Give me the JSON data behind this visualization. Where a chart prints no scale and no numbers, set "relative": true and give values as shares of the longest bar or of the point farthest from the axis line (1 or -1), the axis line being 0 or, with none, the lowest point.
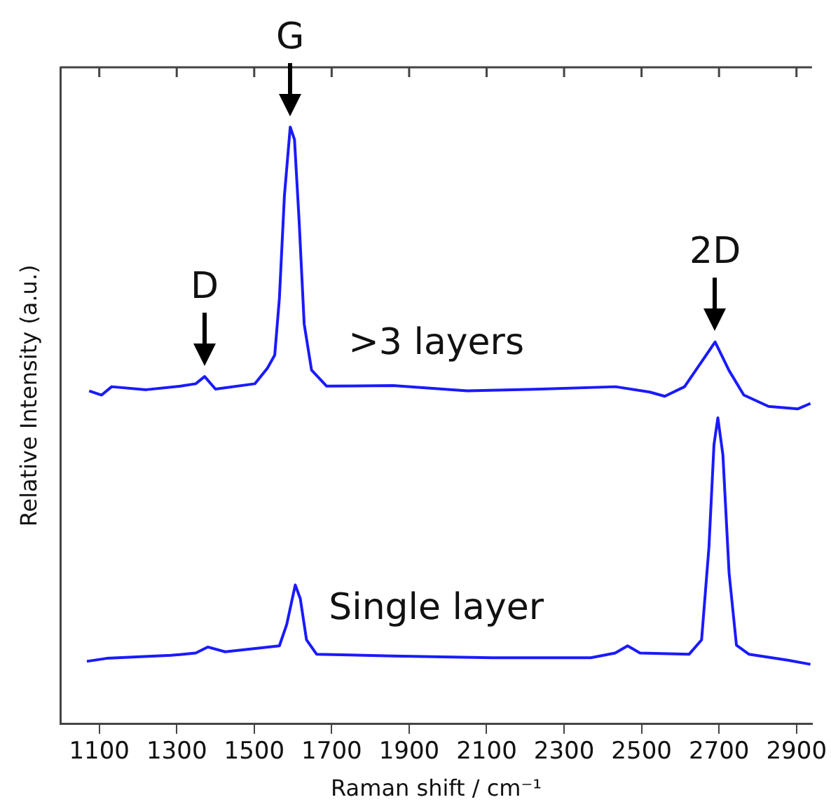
{
  "chart_data": {
    "type": "line",
    "relative": true,
    "xlabel": "Raman shift / cm⁻¹",
    "ylabel": "Relative Intensity (a.u.)",
    "xlim": [
      1000,
      2940
    ],
    "xticks": [
      1100,
      1300,
      1500,
      1700,
      1900,
      2100,
      2300,
      2500,
      2700,
      2900
    ],
    "grid": false,
    "legend": false,
    "marker": "none",
    "line_style": "solid",
    "annotations": [
      {
        "text": "D",
        "x": 1372,
        "y": 0.582
      },
      {
        "text": "G",
        "x": 1593,
        "y": 1.0
      },
      {
        "text": "2D",
        "x": 2690,
        "y": 0.64
      }
    ],
    "series": [
      {
        "name": ">3 layers",
        "color": "#1a1aff",
        "x": [
          1074,
          1106,
          1132,
          1221,
          1310,
          1349,
          1372,
          1400,
          1502,
          1534,
          1553,
          1565,
          1578,
          1593,
          1604,
          1616,
          1629,
          1648,
          1687,
          1859,
          2050,
          2241,
          2433,
          2521,
          2560,
          2611,
          2649,
          2690,
          2726,
          2764,
          2828,
          2904,
          2936
        ],
        "values": [
          0.558,
          0.551,
          0.565,
          0.56,
          0.566,
          0.57,
          0.582,
          0.561,
          0.57,
          0.596,
          0.618,
          0.713,
          0.885,
          1.0,
          0.979,
          0.842,
          0.67,
          0.593,
          0.566,
          0.567,
          0.558,
          0.561,
          0.565,
          0.556,
          0.549,
          0.565,
          0.601,
          0.64,
          0.592,
          0.551,
          0.532,
          0.528,
          0.537
        ]
      },
      {
        "name": "Single layer",
        "color": "#1a1aff",
        "x": [
          1068,
          1119,
          1285,
          1349,
          1380,
          1425,
          1565,
          1584,
          1606,
          1619,
          1635,
          1661,
          1859,
          2114,
          2369,
          2432,
          2464,
          2496,
          2623,
          2655,
          2674,
          2687,
          2697,
          2710,
          2726,
          2745,
          2777,
          2878,
          2936
        ],
        "values": [
          0.105,
          0.11,
          0.115,
          0.119,
          0.129,
          0.121,
          0.131,
          0.167,
          0.233,
          0.21,
          0.141,
          0.117,
          0.114,
          0.111,
          0.111,
          0.119,
          0.131,
          0.119,
          0.117,
          0.141,
          0.296,
          0.468,
          0.513,
          0.451,
          0.253,
          0.132,
          0.117,
          0.107,
          0.1
        ]
      }
    ]
  }
}
